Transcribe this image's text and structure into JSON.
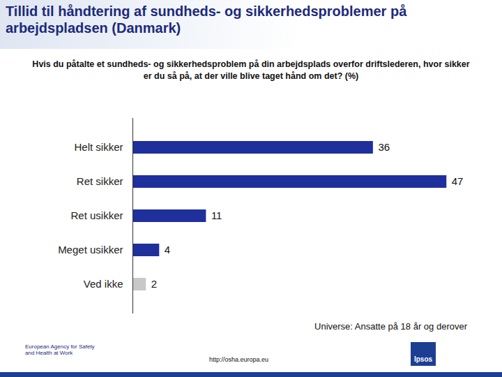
{
  "chart_data": {
    "type": "bar",
    "orientation": "horizontal",
    "title": "Tillid til håndtering af sundheds- og sikkerhedsproblemer på arbejdspladsen (Danmark)",
    "subtitle": "Hvis du påtalte et sundheds- og sikkerhedsproblem på din arbejdsplads overfor driftslederen, hvor sikker er du så på, at der ville blive taget hånd om det? (%)",
    "annotations": [
      "Universe: Ansatte på 18 år og derover",
      "http://osha.europa.eu",
      "European Agency for Safety and Health at Work",
      "Ipsos"
    ],
    "categories": [
      "Helt sikker",
      "Ret sikker",
      "Ret usikker",
      "Meget usikker",
      "Ved ikke"
    ],
    "values": [
      36,
      47,
      11,
      4,
      2
    ],
    "colors": [
      "#1f2f9c",
      "#1f2f9c",
      "#1f2f9c",
      "#1f2f9c",
      "#c8c8c8"
    ],
    "xlim": [
      0,
      50
    ],
    "data_labels": true,
    "tick_labels": "y",
    "grid": false
  }
}
